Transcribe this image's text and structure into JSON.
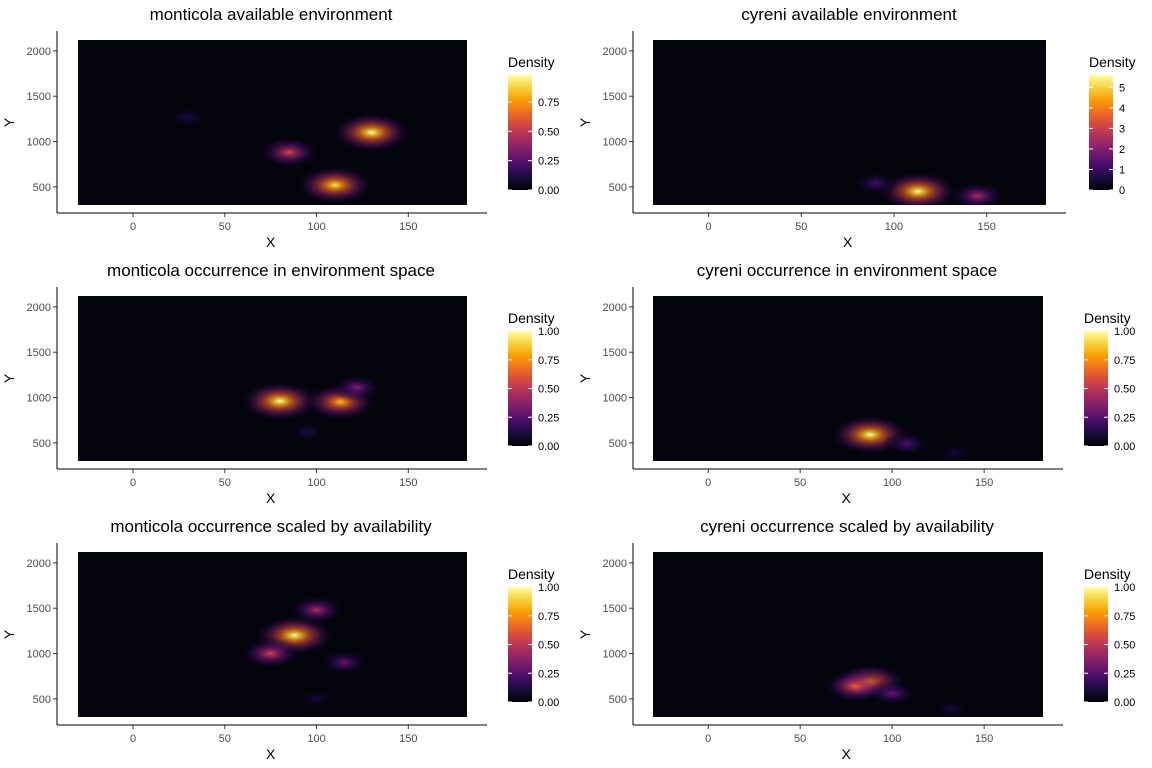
{
  "colors": {
    "background": "#ffffff",
    "panel_background": "#04040c",
    "colormap": "inferno",
    "colormap_stops": [
      "#000004",
      "#1b0c41",
      "#4a0c6b",
      "#781c6d",
      "#a52c60",
      "#cf4446",
      "#ed6925",
      "#fb9b06",
      "#f7d13d",
      "#fcffa4"
    ]
  },
  "chart_data": [
    {
      "type": "heatmap",
      "title": "monticola available environment",
      "xlabel": "X",
      "ylabel": "Y",
      "xlim": [
        -30,
        182
      ],
      "ylim": [
        300,
        2120
      ],
      "x_ticks": [
        "0",
        "50",
        "100",
        "150"
      ],
      "x_tick_values": [
        0,
        50,
        100,
        150
      ],
      "y_ticks": [
        "500",
        "1000",
        "1500",
        "2000"
      ],
      "y_tick_values": [
        500,
        1000,
        1500,
        2000
      ],
      "legend_title": "Density",
      "legend_range": [
        0,
        0.98
      ],
      "legend_ticks": [
        "0.00",
        "0.25",
        "0.50",
        "0.75"
      ],
      "legend_tick_values": [
        0,
        0.25,
        0.5,
        0.75
      ],
      "density_peaks": [
        {
          "x": 130,
          "y": 1100,
          "value": 0.98
        },
        {
          "x": 110,
          "y": 520,
          "value": 0.92
        },
        {
          "x": 85,
          "y": 880,
          "value": 0.55
        },
        {
          "x": 30,
          "y": 1270,
          "value": 0.12
        }
      ]
    },
    {
      "type": "heatmap",
      "title": "cyreni available environment",
      "xlabel": "X",
      "ylabel": "Y",
      "xlim": [
        -30,
        182
      ],
      "ylim": [
        300,
        2120
      ],
      "x_ticks": [
        "0",
        "50",
        "100",
        "150"
      ],
      "x_tick_values": [
        0,
        50,
        100,
        150
      ],
      "y_ticks": [
        "500",
        "1000",
        "1500",
        "2000"
      ],
      "y_tick_values": [
        500,
        1000,
        1500,
        2000
      ],
      "legend_title": "Density",
      "legend_range": [
        0,
        5.6
      ],
      "legend_ticks": [
        "0",
        "1",
        "2",
        "3",
        "4",
        "5"
      ],
      "legend_tick_values": [
        0,
        1,
        2,
        3,
        4,
        5
      ],
      "density_peaks": [
        {
          "x": 113,
          "y": 450,
          "value": 5.6
        },
        {
          "x": 145,
          "y": 400,
          "value": 2.5
        },
        {
          "x": 90,
          "y": 540,
          "value": 1.2
        }
      ]
    },
    {
      "type": "heatmap",
      "title": "monticola occurrence in environment space",
      "xlabel": "X",
      "ylabel": "Y",
      "xlim": [
        -30,
        182
      ],
      "ylim": [
        300,
        2120
      ],
      "x_ticks": [
        "0",
        "50",
        "100",
        "150"
      ],
      "x_tick_values": [
        0,
        50,
        100,
        150
      ],
      "y_ticks": [
        "500",
        "1000",
        "1500",
        "2000"
      ],
      "y_tick_values": [
        500,
        1000,
        1500,
        2000
      ],
      "legend_title": "Density",
      "legend_range": [
        0,
        1
      ],
      "legend_ticks": [
        "0.00",
        "0.25",
        "0.50",
        "0.75",
        "1.00"
      ],
      "legend_tick_values": [
        0,
        0.25,
        0.5,
        0.75,
        1
      ],
      "density_peaks": [
        {
          "x": 80,
          "y": 960,
          "value": 1.0
        },
        {
          "x": 113,
          "y": 950,
          "value": 0.85
        },
        {
          "x": 122,
          "y": 1110,
          "value": 0.35
        },
        {
          "x": 95,
          "y": 620,
          "value": 0.12
        }
      ]
    },
    {
      "type": "heatmap",
      "title": "cyreni occurrence in environment space",
      "xlabel": "X",
      "ylabel": "Y",
      "xlim": [
        -30,
        182
      ],
      "ylim": [
        300,
        2120
      ],
      "x_ticks": [
        "0",
        "50",
        "100",
        "150"
      ],
      "x_tick_values": [
        0,
        50,
        100,
        150
      ],
      "y_ticks": [
        "500",
        "1000",
        "1500",
        "2000"
      ],
      "y_tick_values": [
        500,
        1000,
        1500,
        2000
      ],
      "legend_title": "Density",
      "legend_range": [
        0,
        1
      ],
      "legend_ticks": [
        "0.00",
        "0.25",
        "0.50",
        "0.75",
        "1.00"
      ],
      "legend_tick_values": [
        0,
        0.25,
        0.5,
        0.75,
        1
      ],
      "density_peaks": [
        {
          "x": 88,
          "y": 590,
          "value": 1.0
        },
        {
          "x": 108,
          "y": 490,
          "value": 0.25
        },
        {
          "x": 134,
          "y": 385,
          "value": 0.1
        }
      ]
    },
    {
      "type": "heatmap",
      "title": "monticola occurrence scaled by availability",
      "xlabel": "X",
      "ylabel": "Y",
      "xlim": [
        -30,
        182
      ],
      "ylim": [
        300,
        2120
      ],
      "x_ticks": [
        "0",
        "50",
        "100",
        "150"
      ],
      "x_tick_values": [
        0,
        50,
        100,
        150
      ],
      "y_ticks": [
        "500",
        "1000",
        "1500",
        "2000"
      ],
      "y_tick_values": [
        500,
        1000,
        1500,
        2000
      ],
      "legend_title": "Density",
      "legend_range": [
        0,
        1
      ],
      "legend_ticks": [
        "0.00",
        "0.25",
        "0.50",
        "0.75",
        "1.00"
      ],
      "legend_tick_values": [
        0,
        0.25,
        0.5,
        0.75,
        1
      ],
      "density_peaks": [
        {
          "x": 88,
          "y": 1200,
          "value": 1.0
        },
        {
          "x": 75,
          "y": 1000,
          "value": 0.55
        },
        {
          "x": 100,
          "y": 1480,
          "value": 0.45
        },
        {
          "x": 115,
          "y": 900,
          "value": 0.3
        },
        {
          "x": 100,
          "y": 500,
          "value": 0.1
        }
      ]
    },
    {
      "type": "heatmap",
      "title": "cyreni occurrence scaled by availability",
      "xlabel": "X",
      "ylabel": "Y",
      "xlim": [
        -30,
        182
      ],
      "ylim": [
        300,
        2120
      ],
      "x_ticks": [
        "0",
        "50",
        "100",
        "150"
      ],
      "x_tick_values": [
        0,
        50,
        100,
        150
      ],
      "y_ticks": [
        "500",
        "1000",
        "1500",
        "2000"
      ],
      "y_tick_values": [
        500,
        1000,
        1500,
        2000
      ],
      "legend_title": "Density",
      "legend_range": [
        0,
        1
      ],
      "legend_ticks": [
        "0.00",
        "0.25",
        "0.50",
        "0.75",
        "1.00"
      ],
      "legend_tick_values": [
        0,
        0.25,
        0.5,
        0.75,
        1
      ],
      "density_peaks": [
        {
          "x": 88,
          "y": 690,
          "value": 0.8
        },
        {
          "x": 80,
          "y": 640,
          "value": 0.65
        },
        {
          "x": 100,
          "y": 560,
          "value": 0.3
        },
        {
          "x": 132,
          "y": 385,
          "value": 0.1
        }
      ]
    }
  ]
}
